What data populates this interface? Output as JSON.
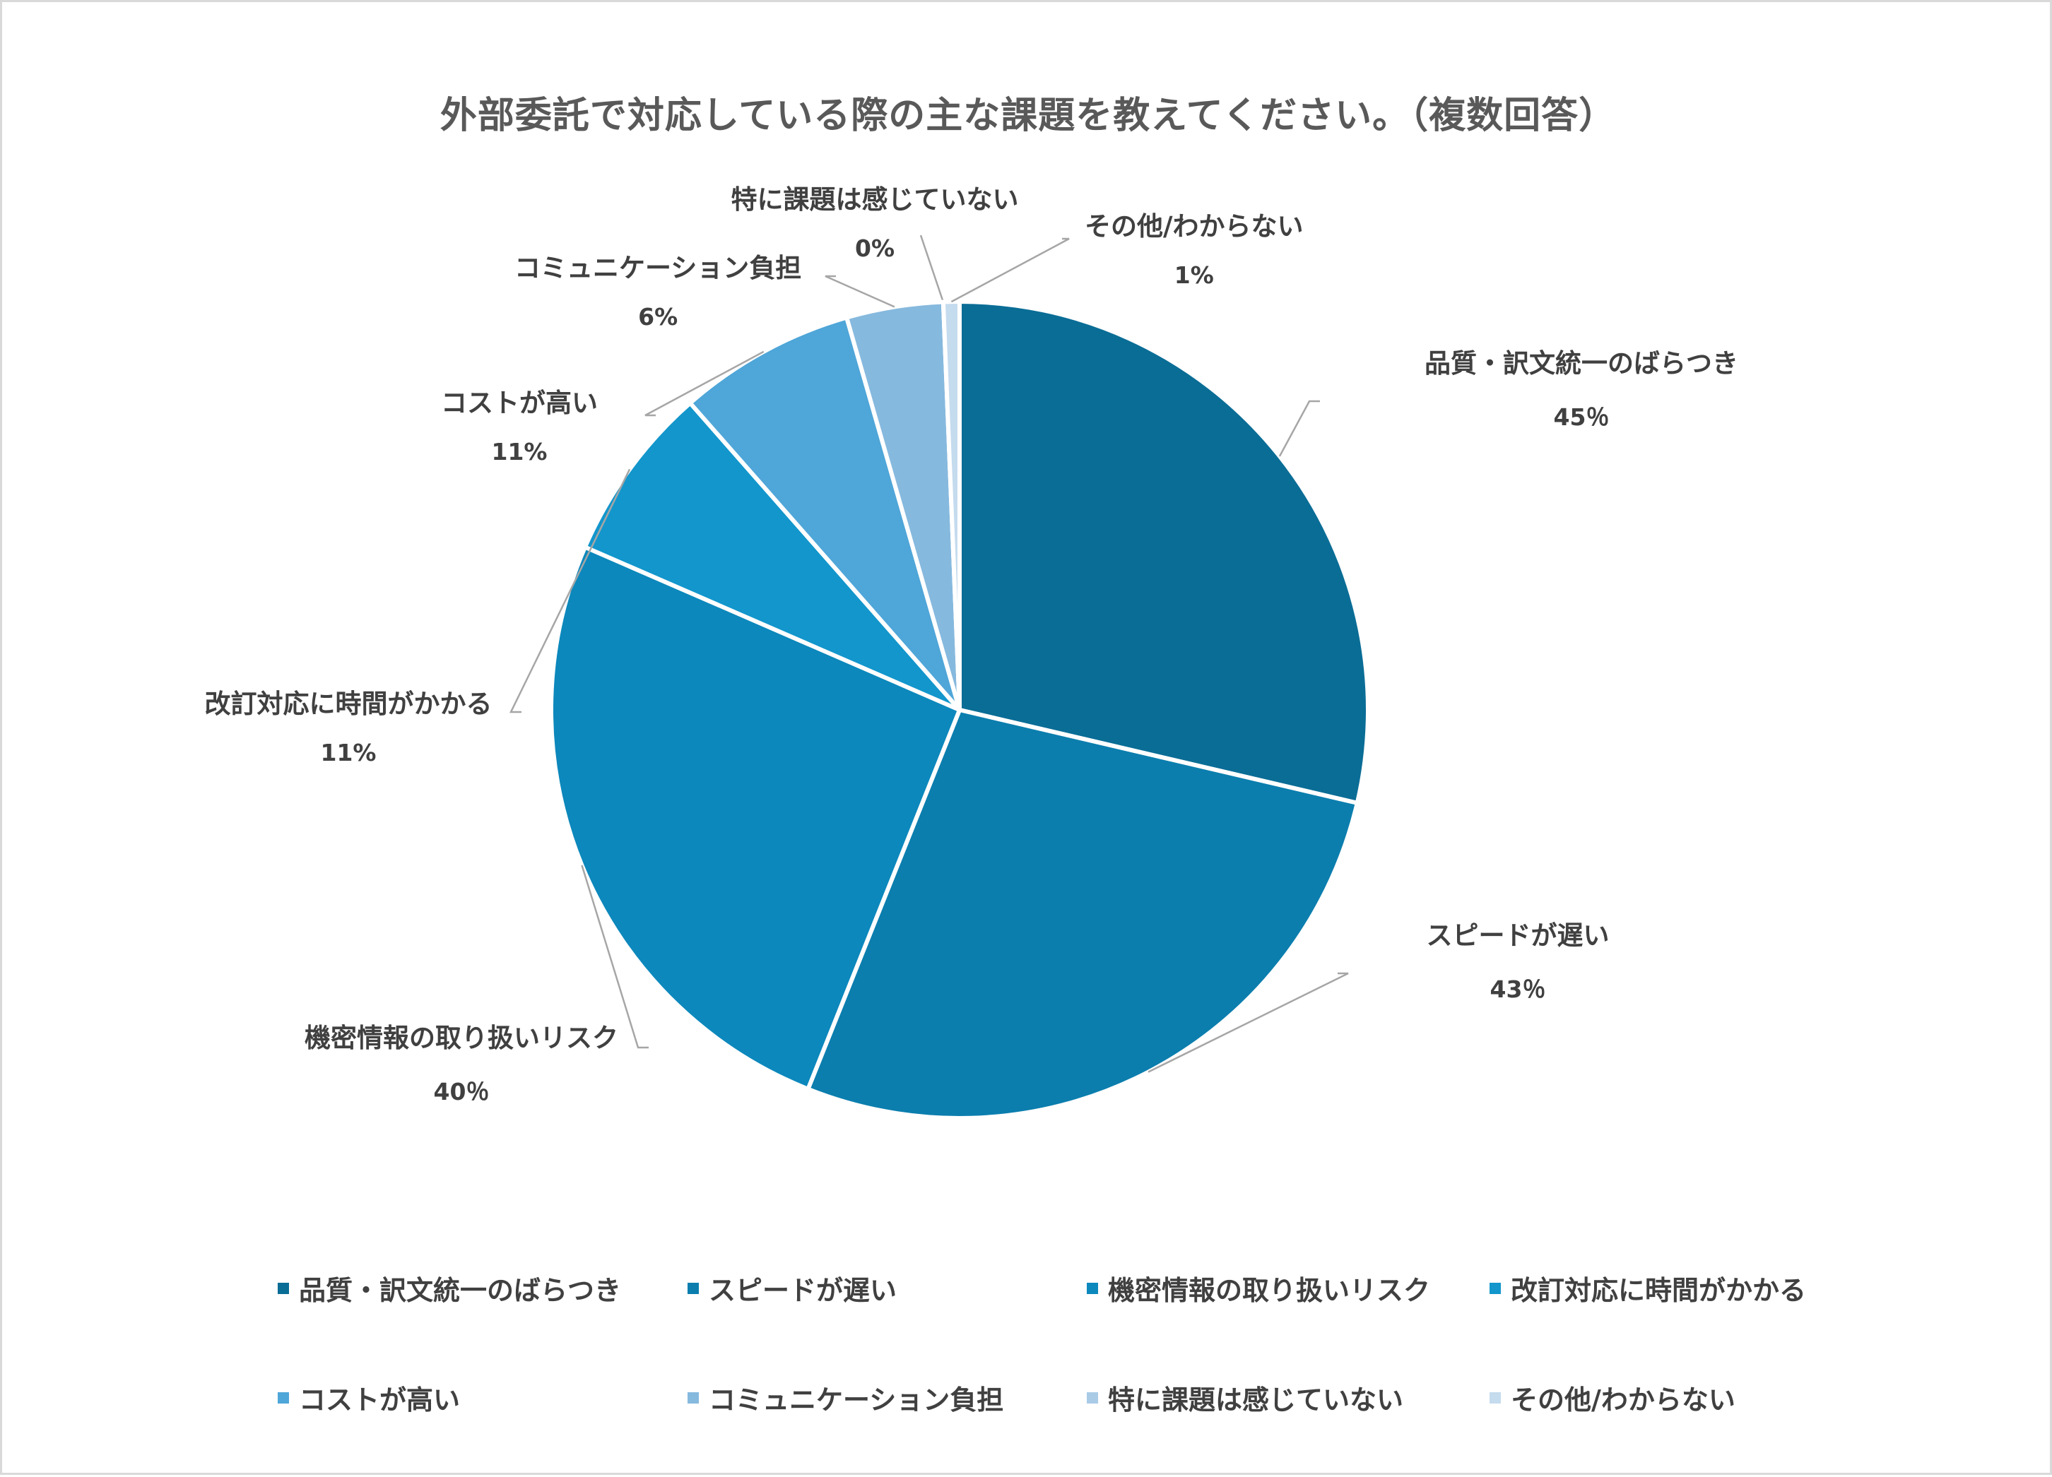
{
  "chart_data": {
    "type": "pie",
    "title": "外部委託で対応している際の主な課題を教えてください。（複数回答）",
    "categories": [
      "品質・訳文統一のばらつき",
      "スピードが遅い",
      "機密情報の取り扱いリスク",
      "改訂対応に時間がかかる",
      "コストが高い",
      "コミュニケーション負担",
      "特に課題は感じていない",
      "その他/わからない"
    ],
    "values": [
      45,
      43,
      40,
      11,
      11,
      6,
      0,
      1
    ],
    "value_labels": [
      "45％",
      "43％",
      "40％",
      "11%",
      "11%",
      "6%",
      "0%",
      "1%"
    ],
    "colors": [
      "#0a6d96",
      "#0b7eae",
      "#0c88bc",
      "#1296cc",
      "#4fa6d8",
      "#86b9de",
      "#a9cbe6",
      "#c5dbee"
    ],
    "legend_position": "bottom",
    "grid": false
  }
}
